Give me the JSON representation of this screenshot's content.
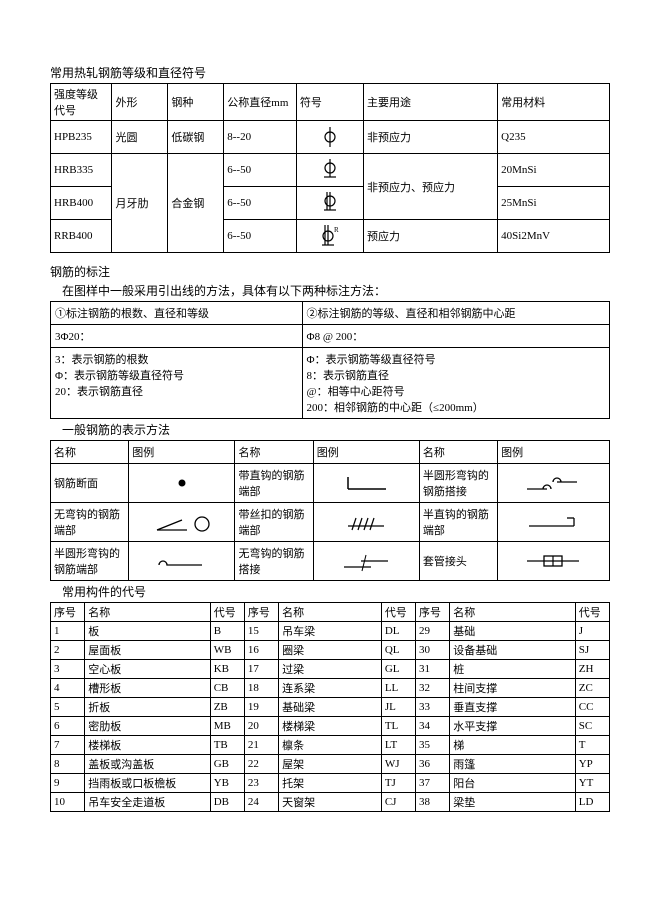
{
  "section1": {
    "title": "常用热轧钢筋等级和直径符号",
    "headers": [
      "强度等级代号",
      "外形",
      "钢种",
      "公称直径mm",
      "符号",
      "主要用途",
      "常用材料"
    ],
    "rows": [
      {
        "code": "HPB235",
        "shape": "光圆",
        "type": "低碳钢",
        "dia": "8--20",
        "use": "非预应力",
        "mat": "Q235",
        "sym": "phi-plain"
      },
      {
        "code": "HRB335",
        "shape": "月牙肋",
        "type": "合金钢",
        "dia": "6--50",
        "use": "非预应力、预应力",
        "mat": "20MnSi",
        "sym": "phi-under"
      },
      {
        "code": "HRB400",
        "shape": "月牙肋",
        "type": "合金钢",
        "dia": "6--50",
        "use": "非预应力、预应力",
        "mat": "25MnSi",
        "sym": "phi-underdot"
      },
      {
        "code": "RRB400",
        "shape": "月牙肋",
        "type": "合金钢",
        "dia": "6--50",
        "use": "预应力",
        "mat": "40Si2MnV",
        "sym": "phi-r"
      }
    ]
  },
  "section2": {
    "title": "钢筋的标注",
    "subtitle": "在图样中一般采用引出线的方法，具体有以下两种标注方法：",
    "h1": "①标注钢筋的根数、直径和等级",
    "h2": "②标注钢筋的等级、直径和相邻钢筋中心距",
    "ex1": "3Φ20：",
    "ex2": "Φ8 @ 200：",
    "d1a": "3：表示钢筋的根数",
    "d1b": "Φ：表示钢筋等级直径符号",
    "d1c": "20：表示钢筋直径",
    "d2a": "Φ：表示钢筋等级直径符号",
    "d2b": "8：表示钢筋直径",
    "d2c": "@：相等中心距符号",
    "d2d": "200：相邻钢筋的中心距（≤200mm）"
  },
  "section3": {
    "title": "一般钢筋的表示方法",
    "headers": [
      "名称",
      "图例",
      "名称",
      "图例",
      "名称",
      "图例"
    ],
    "rows": [
      [
        "钢筋断面",
        "dot",
        "带直钩的钢筋端部",
        "hook-l",
        "半圆形弯钩的钢筋搭接",
        "half-lap"
      ],
      [
        "无弯钩的钢筋端部",
        "line-circle",
        "带丝扣的钢筋端部",
        "thread",
        "半直钩的钢筋端部",
        "half-hook"
      ],
      [
        "半圆形弯钩的钢筋端部",
        "semi-hook",
        "无弯钩的钢筋搭接",
        "no-hook-lap",
        "套管接头",
        "sleeve"
      ]
    ]
  },
  "section4": {
    "title": "常用构件的代号",
    "headers": [
      "序号",
      "名称",
      "代号",
      "序号",
      "名称",
      "代号",
      "序号",
      "名称",
      "代号"
    ],
    "rows": [
      [
        "1",
        "板",
        "B",
        "15",
        "吊车梁",
        "DL",
        "29",
        "基础",
        "J"
      ],
      [
        "2",
        "屋面板",
        "WB",
        "16",
        "圈梁",
        "QL",
        "30",
        "设备基础",
        "SJ"
      ],
      [
        "3",
        "空心板",
        "KB",
        "17",
        "过梁",
        "GL",
        "31",
        "桩",
        "ZH"
      ],
      [
        "4",
        "槽形板",
        "CB",
        "18",
        "连系梁",
        "LL",
        "32",
        "柱间支撑",
        "ZC"
      ],
      [
        "5",
        "折板",
        "ZB",
        "19",
        "基础梁",
        "JL",
        "33",
        "垂直支撑",
        "CC"
      ],
      [
        "6",
        "密肋板",
        "MB",
        "20",
        "楼梯梁",
        "TL",
        "34",
        "水平支撑",
        "SC"
      ],
      [
        "7",
        "楼梯板",
        "TB",
        "21",
        "檩条",
        "LT",
        "35",
        "梯",
        "T"
      ],
      [
        "8",
        "盖板或沟盖板",
        "GB",
        "22",
        "屋架",
        "WJ",
        "36",
        "雨篷",
        "YP"
      ],
      [
        "9",
        "挡雨板或口板檐板",
        "YB",
        "23",
        "托架",
        "TJ",
        "37",
        "阳台",
        "YT"
      ],
      [
        "10",
        "吊车安全走道板",
        "DB",
        "24",
        "天窗架",
        "CJ",
        "38",
        "梁垫",
        "LD"
      ]
    ]
  }
}
